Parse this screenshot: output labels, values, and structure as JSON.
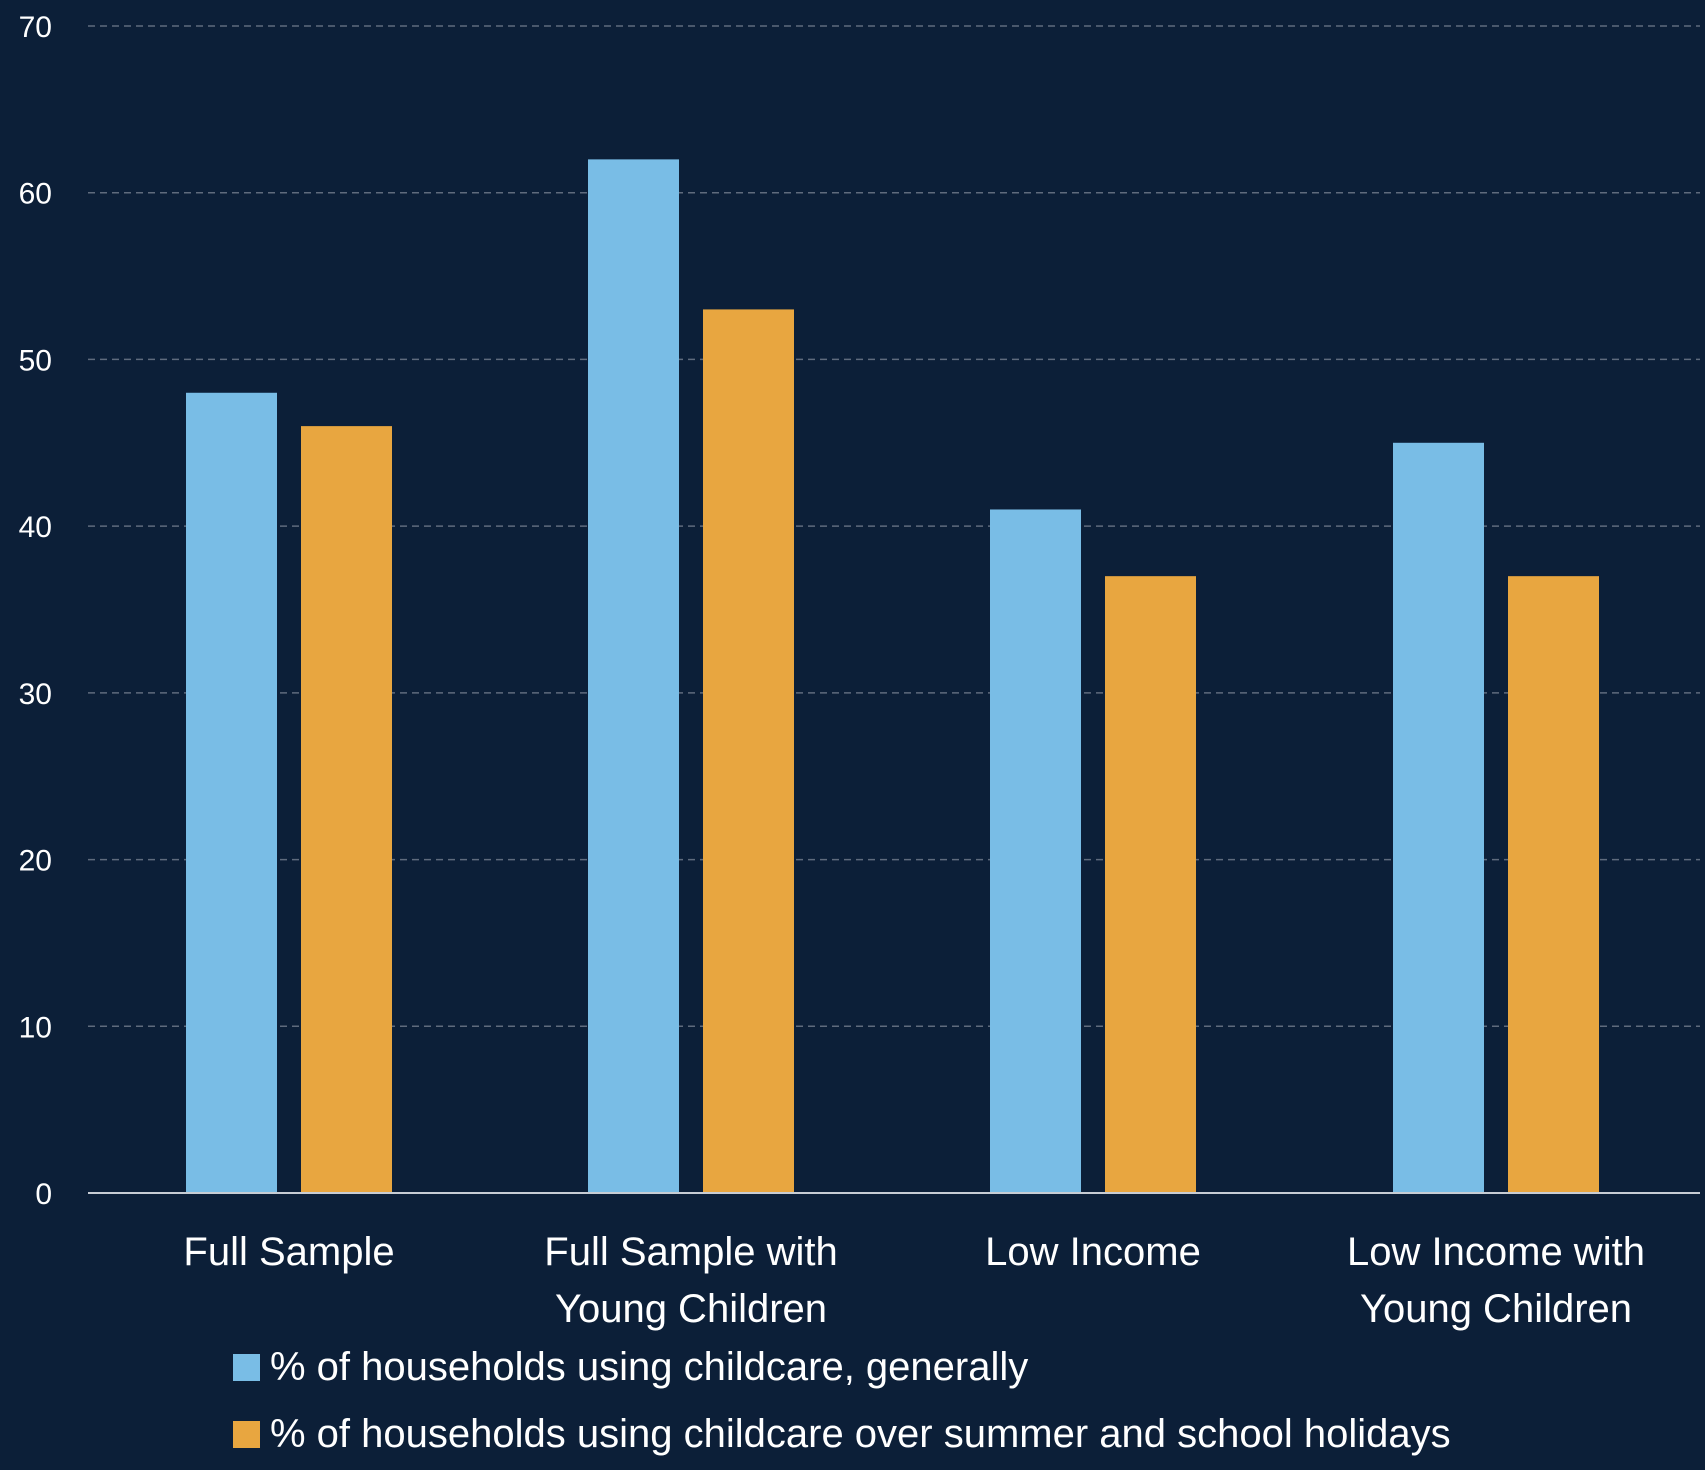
{
  "chart_data": {
    "type": "bar",
    "categories": [
      [
        "Full Sample"
      ],
      [
        "Full Sample with",
        "Young Children"
      ],
      [
        "Low Income"
      ],
      [
        "Low Income with",
        "Young Children"
      ]
    ],
    "series": [
      {
        "name": "% of households using childcare, generally",
        "values": [
          48,
          62,
          41,
          45
        ],
        "color": "#79bde6"
      },
      {
        "name": "% of households using childcare over summer and school holidays",
        "values": [
          46,
          53,
          37,
          37
        ],
        "color": "#e8a640"
      }
    ],
    "title": "",
    "xlabel": "",
    "ylabel": "",
    "ylim": [
      0,
      70
    ],
    "yticks": [
      0,
      10,
      20,
      30,
      40,
      50,
      60,
      70
    ],
    "grid": true,
    "legend_position": "bottom-left",
    "colors": {
      "background": "#0c1f38",
      "text": "#ffffff",
      "gridline": "#5f6b7d",
      "axis": "#c8cdd4"
    }
  }
}
